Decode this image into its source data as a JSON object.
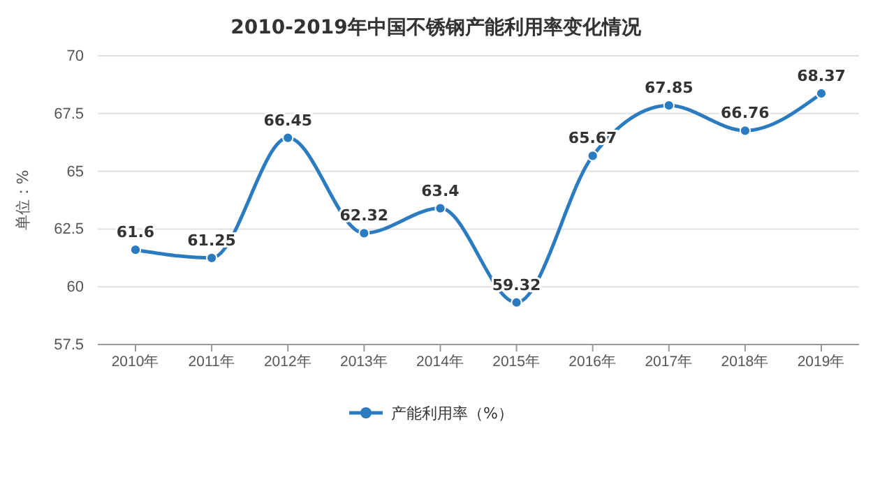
{
  "chart_data": {
    "type": "line",
    "title": "2010-2019年中国不锈钢产能利用率变化情况",
    "ylabel": "单位：%",
    "categories": [
      "2010年",
      "2011年",
      "2012年",
      "2013年",
      "2014年",
      "2015年",
      "2016年",
      "2017年",
      "2018年",
      "2019年"
    ],
    "series": [
      {
        "name": "产能利用率（%）",
        "color": "#2b7bc0",
        "values": [
          61.6,
          61.25,
          66.45,
          62.32,
          63.4,
          59.32,
          65.67,
          67.85,
          66.76,
          68.37
        ]
      }
    ],
    "ylim": [
      57.5,
      70
    ],
    "yticks": [
      57.5,
      60,
      62.5,
      65,
      67.5,
      70
    ],
    "grid": "y",
    "legend": "bottom",
    "marker": "circle",
    "line_style": "solid",
    "data_labels": true
  }
}
